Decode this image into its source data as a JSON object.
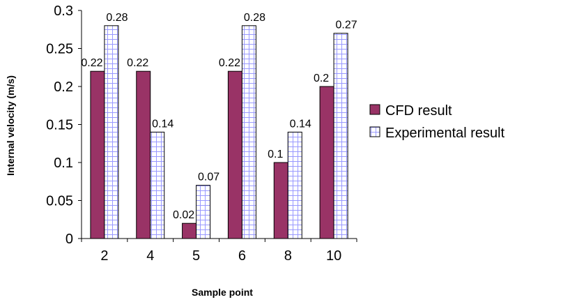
{
  "chart_data": {
    "type": "bar",
    "title": "",
    "xlabel": "Sample point",
    "ylabel": "Internal velocity (m/s)",
    "categories": [
      "2",
      "4",
      "5",
      "6",
      "8",
      "10"
    ],
    "ylim": [
      0,
      0.3
    ],
    "yticks": [
      0,
      0.05,
      0.1,
      0.15,
      0.2,
      0.25,
      0.3
    ],
    "ytick_labels": [
      "0",
      "0.05",
      "0.1",
      "0.15",
      "0.2",
      "0.25",
      "0.3"
    ],
    "grid": false,
    "legend_position": "right",
    "series": [
      {
        "name": "CFD result",
        "color": "#993366",
        "pattern": "solid",
        "values": [
          0.22,
          0.22,
          0.02,
          0.22,
          0.1,
          0.2
        ],
        "value_labels": [
          "0.22",
          "0.22",
          "0.02",
          "0.22",
          "0.1",
          "0.2"
        ]
      },
      {
        "name": "Experimental result",
        "color": "#ffffff",
        "pattern": "blue-grid",
        "pattern_color": "#9999ff",
        "values": [
          0.28,
          0.14,
          0.07,
          0.28,
          0.14,
          0.27
        ],
        "value_labels": [
          "0.28",
          "0.14",
          "0.07",
          "0.28",
          "0.14",
          "0.27"
        ]
      }
    ]
  }
}
